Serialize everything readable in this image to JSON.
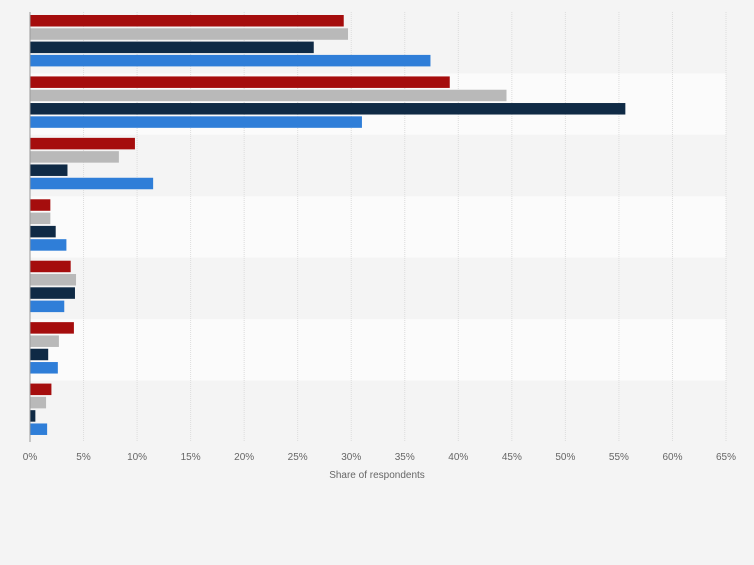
{
  "chart_data": {
    "type": "bar",
    "orientation": "horizontal",
    "categories": [
      "",
      "",
      "",
      "",
      "",
      "",
      ""
    ],
    "series": [
      {
        "color": "#a50d0d",
        "values": [
          29.3,
          39.2,
          9.8,
          1.9,
          3.8,
          4.1,
          2.0
        ]
      },
      {
        "color": "#b9b9b9",
        "values": [
          29.7,
          44.5,
          8.3,
          1.9,
          4.3,
          2.7,
          1.5
        ]
      },
      {
        "color": "#0f2a45",
        "values": [
          26.5,
          55.6,
          3.5,
          2.4,
          4.2,
          1.7,
          0.5
        ]
      },
      {
        "color": "#2f7ed8",
        "values": [
          37.4,
          31.0,
          11.5,
          3.4,
          3.2,
          2.6,
          1.6
        ]
      }
    ],
    "xlim": [
      0,
      65
    ],
    "x_ticks": [
      "0%",
      "5%",
      "10%",
      "15%",
      "20%",
      "25%",
      "30%",
      "35%",
      "40%",
      "45%",
      "50%",
      "55%",
      "60%",
      "65%"
    ],
    "xlabel": "Share of respondents",
    "grid": true,
    "legend": "none"
  }
}
